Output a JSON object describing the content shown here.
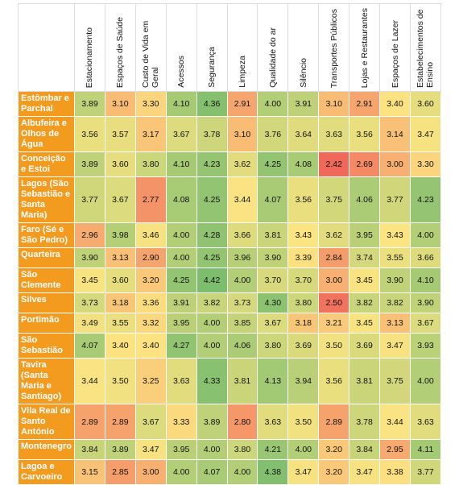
{
  "table": {
    "columns": [
      "Estacionamento",
      "Espaços de Saúde",
      "Custo de Vida em Geral",
      "Acessos",
      "Segurança",
      "Limpeza",
      "Qualidade do ar",
      "Silêncio",
      "Transportes Públicos",
      "Lojas e Restaurantes",
      "Espaços de Lazer",
      "Estabelecimentos de Ensino"
    ],
    "rows": [
      {
        "label": "Estômbar e Parchal",
        "values": [
          "3.89",
          "3.10",
          "3.30",
          "4.10",
          "4.36",
          "2.91",
          "4.00",
          "3.91",
          "3.10",
          "2.91",
          "3.40",
          "3.60"
        ]
      },
      {
        "label": "Albufeira e Olhos de Água",
        "values": [
          "3.56",
          "3.57",
          "3.17",
          "3.67",
          "3.78",
          "3.10",
          "3.76",
          "3.64",
          "3.63",
          "3.56",
          "3.14",
          "3.47"
        ]
      },
      {
        "label": "Conceição e Estoi",
        "values": [
          "3.89",
          "3.60",
          "3.80",
          "4.10",
          "4.23",
          "3.62",
          "4.25",
          "4.08",
          "2.42",
          "2.69",
          "3.00",
          "3.30"
        ]
      },
      {
        "label": "Lagos (São Sebastião e Santa Maria)",
        "values": [
          "3.77",
          "3.67",
          "2.77",
          "4.08",
          "4.25",
          "3.44",
          "4.07",
          "3.56",
          "3.75",
          "4.06",
          "3.77",
          "4.23"
        ]
      },
      {
        "label": "Faro (Sé e São Pedro)",
        "values": [
          "2.96",
          "3.98",
          "3.46",
          "4.00",
          "4.28",
          "3.66",
          "3.81",
          "3.43",
          "3.62",
          "3.95",
          "3.43",
          "4.00"
        ]
      },
      {
        "label": "Quarteira",
        "values": [
          "3.90",
          "3.13",
          "2.90",
          "4.00",
          "4.25",
          "3.96",
          "3.90",
          "3.39",
          "2.84",
          "3.74",
          "3.55",
          "3.66"
        ]
      },
      {
        "label": "São Clemente",
        "values": [
          "3.45",
          "3.60",
          "3.20",
          "4.25",
          "4.42",
          "4.00",
          "3.70",
          "3.70",
          "3.00",
          "3.45",
          "3.90",
          "4.10"
        ]
      },
      {
        "label": "Silves",
        "values": [
          "3.73",
          "3.18",
          "3.36",
          "3.91",
          "3.82",
          "3.73",
          "4.30",
          "3.80",
          "2.50",
          "3.82",
          "3.82",
          "3.90"
        ]
      },
      {
        "label": "Portimão",
        "values": [
          "3.49",
          "3.55",
          "3.32",
          "3.95",
          "4.00",
          "3.85",
          "3.67",
          "3.18",
          "3.21",
          "3.45",
          "3.13",
          "3.67"
        ]
      },
      {
        "label": "São Sebastião",
        "values": [
          "4.07",
          "3.40",
          "3.40",
          "4.27",
          "4.00",
          "4.06",
          "3.80",
          "3.69",
          "3.50",
          "3.69",
          "3.47",
          "3.93"
        ]
      },
      {
        "label": "Tavira (Santa Maria e Santiago)",
        "values": [
          "3.44",
          "3.50",
          "3.25",
          "3.63",
          "4.33",
          "3.81",
          "4.13",
          "3.94",
          "3.56",
          "3.81",
          "3.75",
          "4.00"
        ]
      },
      {
        "label": "Vila Real de Santo António",
        "values": [
          "2.89",
          "2.89",
          "3.67",
          "3.33",
          "3.89",
          "2.80",
          "3.63",
          "3.50",
          "2.89",
          "3.78",
          "3.44",
          "3.63"
        ]
      },
      {
        "label": "Montenegro",
        "values": [
          "3.84",
          "3.89",
          "3.47",
          "3.95",
          "4.00",
          "3.80",
          "4.21",
          "4.00",
          "3.20",
          "3.84",
          "2.95",
          "4.11"
        ]
      },
      {
        "label": "Lagoa e Carvoeiro",
        "values": [
          "3.15",
          "2.85",
          "3.00",
          "4.00",
          "4.07",
          "4.00",
          "4.38",
          "3.47",
          "3.20",
          "3.47",
          "3.38",
          "3.77"
        ]
      }
    ]
  }
}
